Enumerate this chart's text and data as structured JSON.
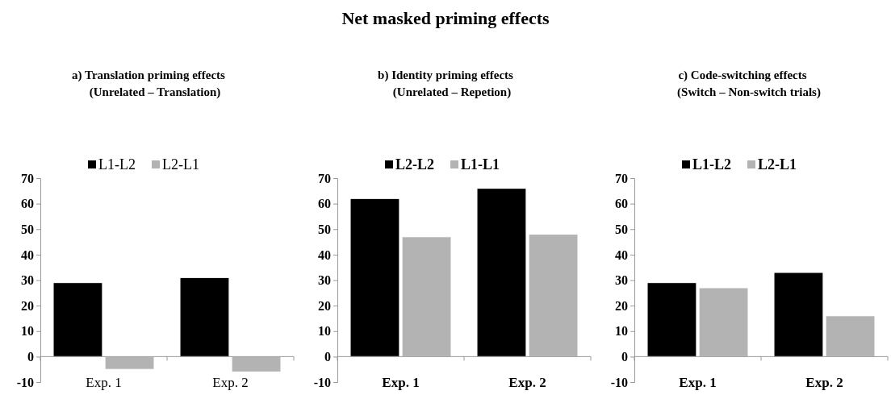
{
  "chart_data": [
    {
      "type": "bar",
      "subtitle": "a)    Translation priming effects\n(Unrelated – Translation)",
      "categories": [
        "Exp. 1",
        "Exp. 2"
      ],
      "series": [
        {
          "name": "L1-L2",
          "color": "#000000",
          "values": [
            29,
            31
          ]
        },
        {
          "name": "L2-L1",
          "color": "#b3b3b3",
          "values": [
            -5,
            -6
          ]
        }
      ],
      "ylim": [
        -10,
        70
      ],
      "yticks": [
        -10,
        0,
        10,
        20,
        30,
        40,
        50,
        60,
        70
      ],
      "grid": false,
      "legend": "top"
    },
    {
      "type": "bar",
      "title": "Net masked priming effects",
      "subtitle": "b)    Identity priming effects\n(Unrelated – Repetion)",
      "categories": [
        "Exp. 1",
        "Exp. 2"
      ],
      "series": [
        {
          "name": "L2-L2",
          "color": "#000000",
          "values": [
            62,
            66
          ]
        },
        {
          "name": "L1-L1",
          "color": "#b3b3b3",
          "values": [
            47,
            48
          ]
        }
      ],
      "ylim": [
        -10,
        70
      ],
      "yticks": [
        -10,
        0,
        10,
        20,
        30,
        40,
        50,
        60,
        70
      ],
      "grid": false,
      "legend": "top"
    },
    {
      "type": "bar",
      "subtitle": "c)    Code-switching effects\n(Switch – Non-switch trials)",
      "categories": [
        "Exp. 1",
        "Exp. 2"
      ],
      "series": [
        {
          "name": "L1-L2",
          "color": "#000000",
          "values": [
            29,
            33
          ]
        },
        {
          "name": "L2-L1",
          "color": "#b3b3b3",
          "values": [
            27,
            16
          ]
        }
      ],
      "ylim": [
        -10,
        70
      ],
      "yticks": [
        -10,
        0,
        10,
        20,
        30,
        40,
        50,
        60,
        70
      ],
      "grid": false,
      "legend": "top"
    }
  ]
}
